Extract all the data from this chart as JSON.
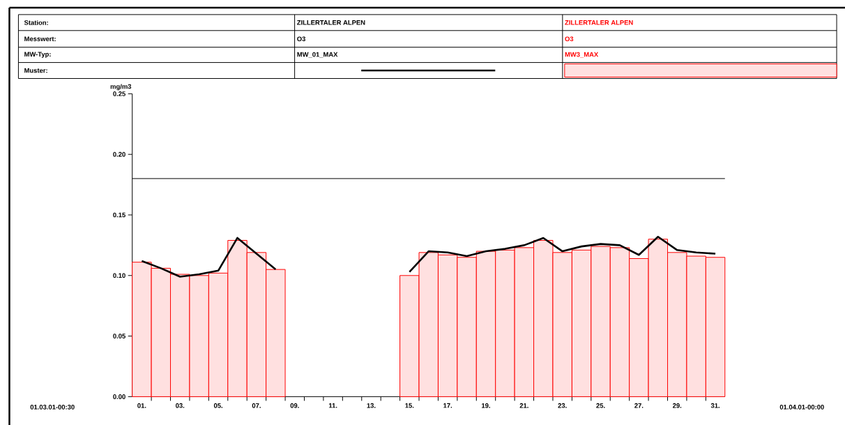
{
  "chart_data": {
    "type": "bar",
    "categories": [
      "01.",
      null,
      "03.",
      null,
      "05.",
      null,
      "07.",
      null,
      "09.",
      null,
      "11.",
      null,
      "13.",
      null,
      "15.",
      null,
      "17.",
      null,
      "19.",
      null,
      "21.",
      null,
      "23.",
      null,
      "25.",
      null,
      "27.",
      null,
      "29.",
      null,
      "31."
    ],
    "series": [
      {
        "name": "MW_01_MAX",
        "type": "line",
        "color": "#000000",
        "values": [
          0.112,
          0.106,
          0.099,
          0.101,
          0.104,
          0.131,
          0.118,
          0.105,
          null,
          null,
          null,
          null,
          null,
          null,
          0.103,
          0.12,
          0.119,
          0.116,
          0.12,
          0.122,
          0.125,
          0.131,
          0.12,
          0.124,
          0.126,
          0.125,
          0.117,
          0.132,
          0.121,
          0.119,
          0.118
        ]
      },
      {
        "name": "MW3_MAX",
        "color": "#ff0000",
        "values": [
          0.111,
          0.106,
          0.101,
          0.1,
          0.102,
          0.129,
          0.119,
          0.105,
          null,
          null,
          null,
          null,
          null,
          null,
          0.1,
          0.119,
          0.117,
          0.115,
          0.12,
          0.121,
          0.123,
          0.129,
          0.119,
          0.121,
          0.124,
          0.123,
          0.114,
          0.13,
          0.119,
          0.116,
          0.115
        ]
      }
    ],
    "ylabel": "mg/m3",
    "ylim": [
      0,
      0.25
    ],
    "yticks": [
      {
        "value": 0,
        "label": "0.00"
      },
      {
        "value": 0.05,
        "label": "0.05"
      },
      {
        "value": 0.1,
        "label": "0.10"
      },
      {
        "value": 0.15,
        "label": "0.15"
      },
      {
        "value": 0.2,
        "label": "0.20"
      },
      {
        "value": 0.25,
        "label": "0.25"
      }
    ],
    "ref_lines": [
      {
        "axis": "y",
        "value": 0.18
      }
    ],
    "legend": "top",
    "annotations": [
      "Station:",
      "Messwert:",
      "MW-Typ:",
      "Muster:",
      "ZILLERTALER ALPEN",
      "O3",
      "ZILLERTALER ALPEN",
      "O3",
      "01.03.01-00:30",
      "01.04.01-00:00"
    ]
  }
}
